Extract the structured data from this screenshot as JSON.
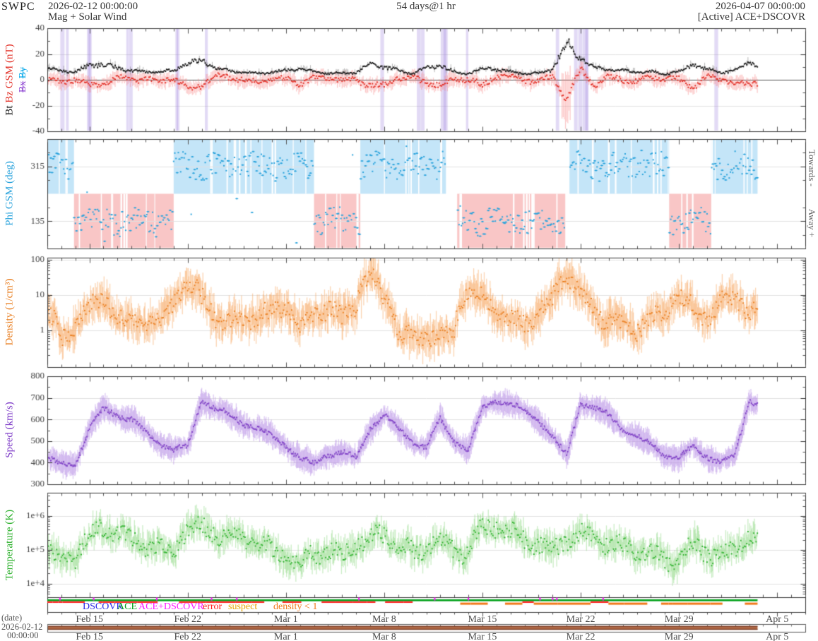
{
  "header": {
    "brand": "SWPC",
    "start_datetime": "2026-02-12 00:00:00",
    "duration": "54 days@1 hr",
    "end_datetime": "2026-04-07 00:00:00",
    "title": "Mag + Solar Wind",
    "status": "[Active] ACE+DSCOVR"
  },
  "footer": {
    "axis_caption": "(date)",
    "start_date": "2026-02-12",
    "start_time": "00:00:00"
  },
  "legend": {
    "items": [
      {
        "label": "DSCOVR",
        "color": "#2a2ae8"
      },
      {
        "label": "ACE",
        "color": "#00a018"
      },
      {
        "label": "ACE+DSCOVR",
        "color": "#ff14ff"
      },
      {
        "label": "error",
        "color": "#ff1414"
      },
      {
        "label": "suspect",
        "color": "#e8a400"
      },
      {
        "label": "density < 1",
        "color": "#f07818"
      }
    ]
  },
  "chart_data": {
    "type": "line",
    "duration_days": 54,
    "data_end_day": 50.6,
    "x_ticks": [
      {
        "day": 3,
        "label": "Feb 15"
      },
      {
        "day": 10,
        "label": "Feb 22"
      },
      {
        "day": 17,
        "label": "Mar 1"
      },
      {
        "day": 24,
        "label": "Mar 8"
      },
      {
        "day": 31,
        "label": "Mar 15"
      },
      {
        "day": 38,
        "label": "Mar 22"
      },
      {
        "day": 45,
        "label": "Mar 29"
      },
      {
        "day": 52,
        "label": "Apr 5"
      }
    ],
    "panels": [
      {
        "id": "mag",
        "ylabel_bt": "Bt",
        "ylabel_bz": "Bz GSM (nT)",
        "ylabel_bx": "Bx",
        "ylabel_by": "By",
        "color_bt": "#1a1a1a",
        "color_bz": "#e23128",
        "color_bx": "#8a3fd0",
        "color_by": "#00a6e8",
        "ylim": [
          -40,
          40
        ],
        "yticks": [
          -40,
          -20,
          0,
          20,
          40
        ],
        "bt_values": [
          8,
          7,
          6,
          11,
          12,
          9,
          7,
          6,
          6,
          7,
          13,
          15,
          9,
          7,
          6,
          5,
          6,
          7,
          9,
          6,
          5,
          5,
          6,
          12,
          10,
          7,
          5,
          9,
          11,
          6,
          5,
          9,
          8,
          6,
          5,
          5,
          8,
          30,
          16,
          9,
          8,
          7,
          6,
          6,
          5,
          6,
          12,
          8,
          6,
          7,
          15,
          9
        ],
        "bz_values": [
          0,
          -2,
          1,
          -5,
          -3,
          2,
          1,
          0,
          -1,
          2,
          -8,
          -4,
          3,
          2,
          0,
          -2,
          1,
          0,
          -3,
          1,
          2,
          0,
          -1,
          -4,
          -5,
          2,
          1,
          -2,
          -4,
          0,
          1,
          -5,
          3,
          2,
          0,
          -1,
          2,
          -15,
          8,
          -5,
          2,
          0,
          -1,
          2,
          1,
          0,
          -6,
          2,
          1,
          -3,
          -4,
          0
        ],
        "bz_band_color": "rgba(248,128,128,0.42)",
        "gap_bar_color": "rgba(158,132,222,0.30)",
        "gap_bars_days": [
          1.0,
          1.4,
          2.9,
          3.0,
          5.7,
          5.9,
          9.2,
          9.3,
          11.3,
          23.8,
          26.4,
          26.7,
          28.1,
          28.3,
          29.9,
          36.3,
          37.6,
          37.9,
          38.2,
          38.4,
          47.6
        ]
      },
      {
        "id": "phi",
        "ylabel": "Phi GSM (deg)",
        "right_label_top": "Towards -",
        "right_label_bottom": "Away +",
        "ylim": [
          45,
          405
        ],
        "yticks": [
          135,
          315
        ],
        "sector_split": 225,
        "dot_color": "#2aa3dc",
        "toward_fill": "#c4e5f8",
        "away_fill": "#f9c6c6",
        "sectors": [
          {
            "from": 0.0,
            "to": 1.9,
            "polarity": "toward"
          },
          {
            "from": 1.9,
            "to": 9.0,
            "polarity": "away"
          },
          {
            "from": 9.0,
            "to": 19.0,
            "polarity": "toward"
          },
          {
            "from": 19.0,
            "to": 22.3,
            "polarity": "away"
          },
          {
            "from": 22.3,
            "to": 28.4,
            "polarity": "toward"
          },
          {
            "from": 29.2,
            "to": 36.9,
            "polarity": "away"
          },
          {
            "from": 37.2,
            "to": 44.3,
            "polarity": "toward"
          },
          {
            "from": 44.3,
            "to": 47.3,
            "polarity": "away"
          },
          {
            "from": 47.3,
            "to": 50.6,
            "polarity": "toward"
          }
        ]
      },
      {
        "id": "density",
        "ylabel": "Density (1/cm³)",
        "log": true,
        "ylim": [
          0.091,
          115
        ],
        "yticks": [
          1,
          10,
          100
        ],
        "ytick_labels": [
          "1",
          "10",
          "100"
        ],
        "color": "#e87e20",
        "band_color": "rgba(246,166,94,0.48)",
        "values": [
          3,
          0.4,
          1.5,
          4,
          8,
          2,
          1.5,
          2,
          1.5,
          6,
          20,
          8,
          2,
          1.5,
          2,
          2.5,
          3,
          5,
          1.2,
          3,
          4,
          2,
          6,
          30,
          8,
          0.7,
          0.6,
          0.8,
          0.7,
          0.6,
          15,
          8,
          3,
          2,
          1.5,
          3,
          6,
          40,
          10,
          3,
          2,
          1.5,
          1,
          2,
          3,
          10,
          4,
          2,
          6,
          8,
          4,
          3
        ]
      },
      {
        "id": "speed",
        "ylabel": "Speed (km/s)",
        "ylim": [
          300,
          800
        ],
        "yticks": [
          300,
          400,
          500,
          600,
          700,
          800
        ],
        "color": "#7e3cc8",
        "band_color": "rgba(188,150,232,0.5)",
        "values": [
          420,
          390,
          400,
          560,
          650,
          620,
          600,
          540,
          490,
          460,
          470,
          690,
          650,
          620,
          580,
          560,
          520,
          480,
          420,
          390,
          440,
          450,
          420,
          560,
          620,
          560,
          500,
          470,
          600,
          500,
          460,
          650,
          690,
          670,
          640,
          600,
          520,
          430,
          680,
          650,
          620,
          560,
          520,
          480,
          440,
          420,
          470,
          430,
          400,
          430,
          690,
          660
        ]
      },
      {
        "id": "temperature",
        "ylabel": "Temperature (K)",
        "log": true,
        "ylim": [
          4000,
          4870000
        ],
        "yticks": [
          10000,
          100000,
          1000000
        ],
        "ytick_labels": [
          "1e+4",
          "1e+5",
          "1e+6"
        ],
        "color": "#2cb02c",
        "band_color": "rgba(150,220,140,0.5)",
        "values": [
          80000,
          50000,
          60000,
          200000,
          500000,
          300000,
          200000,
          150000,
          100000,
          80000,
          400000,
          500000,
          300000,
          250000,
          200000,
          150000,
          100000,
          60000,
          40000,
          80000,
          100000,
          60000,
          150000,
          200000,
          300000,
          150000,
          80000,
          100000,
          200000,
          100000,
          80000,
          400000,
          500000,
          300000,
          200000,
          150000,
          80000,
          200000,
          300000,
          200000,
          150000,
          120000,
          100000,
          80000,
          50000,
          40000,
          150000,
          80000,
          60000,
          100000,
          300000,
          200000
        ]
      }
    ],
    "availability_strip": {
      "bar_color": "#00a018",
      "error_color": "#ff2020",
      "suspect_color": "#f07818",
      "merge_tick_color": "#ff14ff"
    },
    "range_selector": {
      "bar_color": "#b06a45",
      "bar_edge_color": "#7e3f26",
      "extent_days": [
        0,
        50.6
      ]
    }
  }
}
